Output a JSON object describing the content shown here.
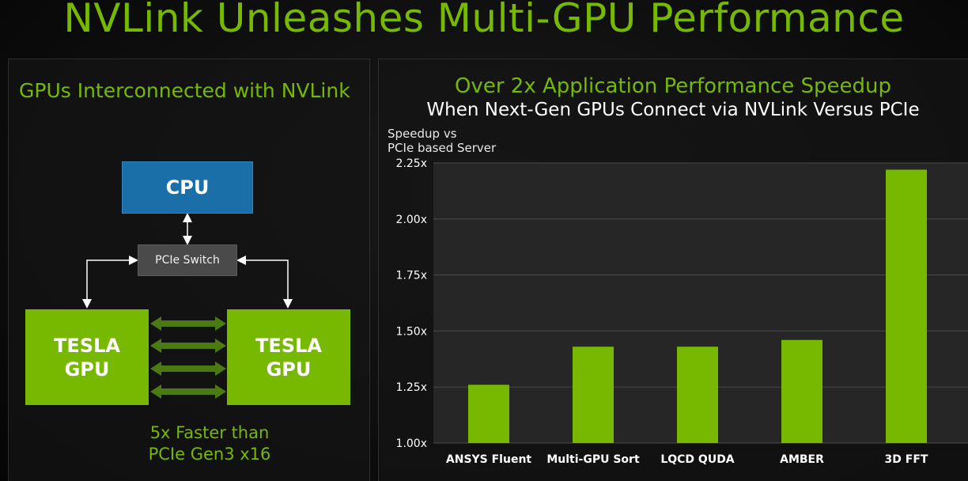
{
  "title": "NVLink Unleashes Multi-GPU Performance",
  "left_panel": {
    "heading": "GPUs Interconnected with NVLink",
    "cpu_label": "CPU",
    "switch_label": "PCIe Switch",
    "gpu_left_label": "TESLA\nGPU",
    "gpu_right_label": "TESLA\nGPU",
    "caption": "5x Faster than\nPCIe Gen3 x16"
  },
  "chart_data": {
    "type": "bar",
    "title": "Over 2x Application Performance Speedup",
    "subtitle": "When Next-Gen GPUs Connect via NVLink Versus PCIe",
    "ylabel": "Speedup vs\nPCIe based Server",
    "xlabel": "",
    "categories": [
      "ANSYS Fluent",
      "Multi-GPU Sort",
      "LQCD QUDA",
      "AMBER",
      "3D FFT"
    ],
    "values": [
      1.26,
      1.43,
      1.43,
      1.46,
      2.22
    ],
    "ylim": [
      1.0,
      2.25
    ],
    "yticks": [
      1.0,
      1.25,
      1.5,
      1.75,
      2.0,
      2.25
    ],
    "ytick_labels": [
      "1.00x",
      "1.25x",
      "1.50x",
      "1.75x",
      "2.00x",
      "2.25x"
    ],
    "grid": true,
    "bar_color": "#76b900"
  },
  "colors": {
    "accent": "#76b900",
    "cpu": "#1a6fa8",
    "switch": "#4a4a4a",
    "nvlink_arrow": "#4c7a12"
  }
}
